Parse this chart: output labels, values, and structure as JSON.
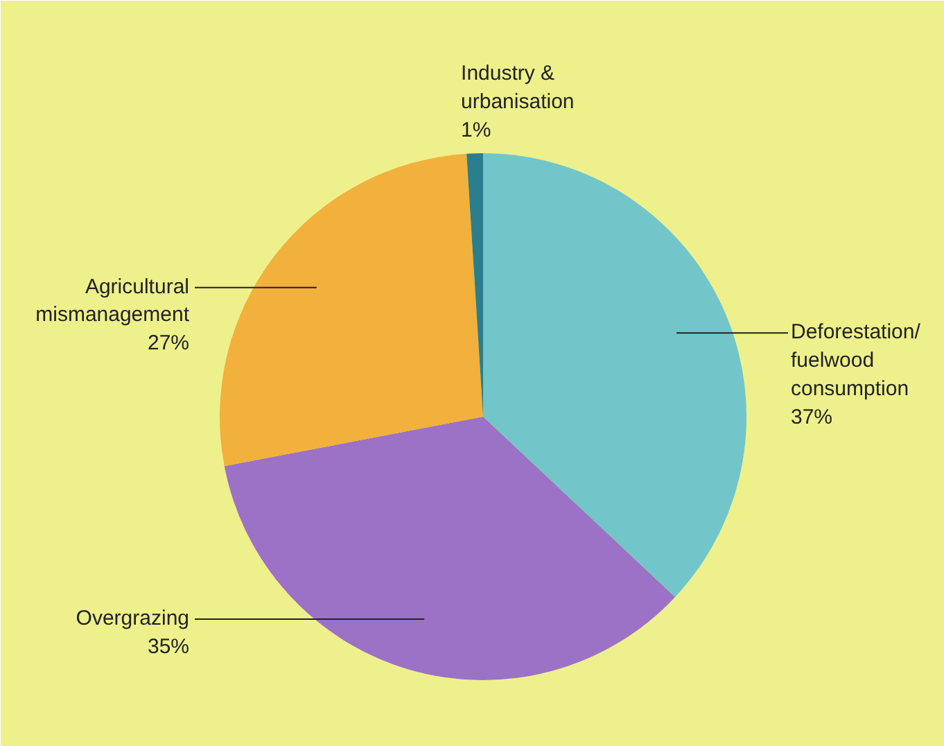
{
  "chart_data": {
    "type": "pie",
    "categories": [
      "Deforestation/ fuelwood consumption",
      "Overgrazing",
      "Agricultural mismanagement",
      "Industry & urbanisation"
    ],
    "values": [
      37,
      35,
      27,
      1
    ],
    "value_labels": [
      "37%",
      "35%",
      "27%",
      "1%"
    ],
    "colors": [
      "#72c6c9",
      "#9b72c6",
      "#f2b13c",
      "#2b7f8c"
    ]
  }
}
